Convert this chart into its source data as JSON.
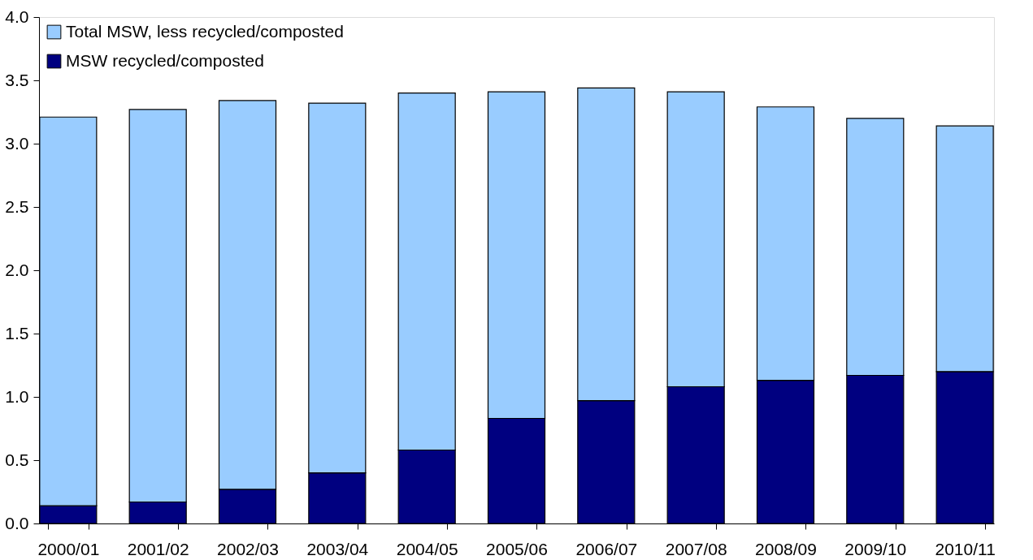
{
  "chart_data": {
    "type": "bar",
    "stacked": true,
    "categories": [
      "2000/01",
      "2001/02",
      "2002/03",
      "2003/04",
      "2004/05",
      "2005/06",
      "2006/07",
      "2007/08",
      "2008/09",
      "2009/10",
      "2010/11"
    ],
    "series": [
      {
        "name": "MSW recycled/composted",
        "color": "#000080",
        "values": [
          0.14,
          0.17,
          0.27,
          0.4,
          0.58,
          0.83,
          0.97,
          1.08,
          1.13,
          1.17,
          1.2
        ]
      },
      {
        "name": "Total MSW, less recycled/composted",
        "color": "#99ccff",
        "values": [
          3.07,
          3.1,
          3.07,
          2.92,
          2.82,
          2.58,
          2.47,
          2.33,
          2.16,
          2.03,
          1.94
        ]
      }
    ],
    "ylim": [
      0,
      4
    ],
    "yticks": [
      {
        "value": 0,
        "label": "0.0"
      },
      0.5,
      {
        "value": 1,
        "label": "1.0"
      },
      1.5,
      {
        "value": 2,
        "label": "2.0"
      },
      2.5,
      {
        "value": 3,
        "label": "3.0"
      },
      3.5,
      {
        "value": 4,
        "label": "4.0"
      }
    ],
    "grid": false,
    "legend": "top left"
  }
}
